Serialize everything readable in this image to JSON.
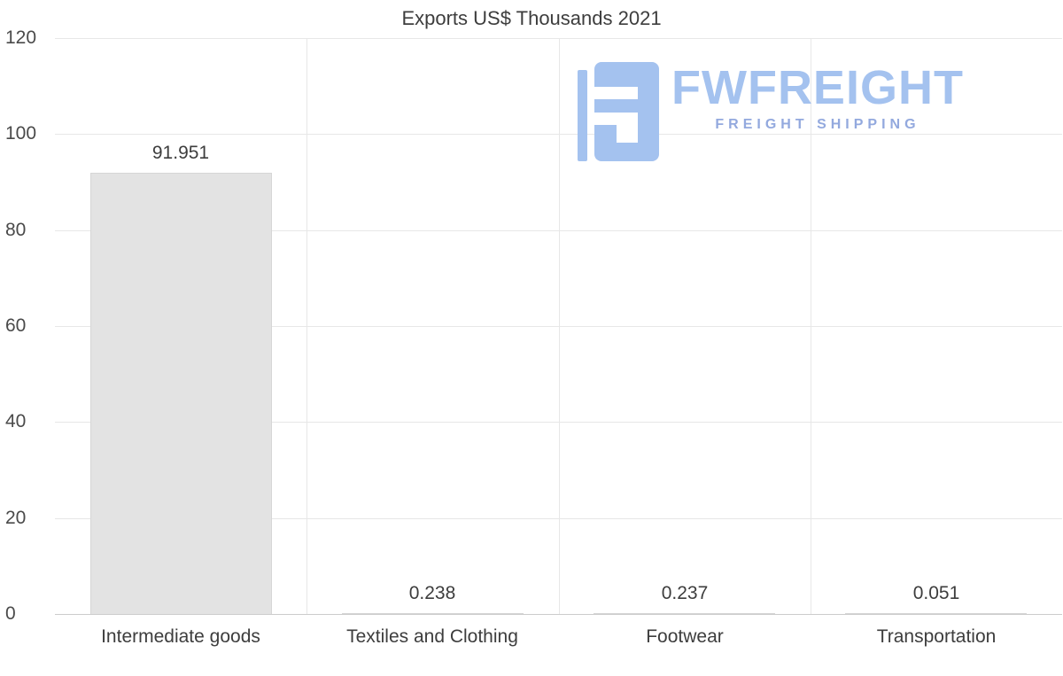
{
  "chart_data": {
    "type": "bar",
    "title": "Exports US$ Thousands 2021",
    "categories": [
      "Intermediate goods",
      "Textiles and Clothing",
      "Footwear",
      "Transportation"
    ],
    "values": [
      91.951,
      0.238,
      0.237,
      0.051
    ],
    "value_labels": [
      "91.951",
      "0.238",
      "0.237",
      "0.051"
    ],
    "bar_colors": [
      "#e3e3e3",
      "#dedede",
      "#a9c6f0",
      "#dedede"
    ],
    "bar_border_color": "#d6d6d6",
    "ylim": [
      0,
      120
    ],
    "yticks": [
      0,
      20,
      40,
      60,
      80,
      100,
      120
    ],
    "grid": true,
    "legend": false,
    "xlabel": "",
    "ylabel": ""
  },
  "watermark": {
    "brand": "FWFREIGHT",
    "tagline": "FREIGHT SHIPPING",
    "brand_color": "#a4c2ef",
    "tagline_color": "#93a9de",
    "icon": "freight-logo-icon"
  }
}
